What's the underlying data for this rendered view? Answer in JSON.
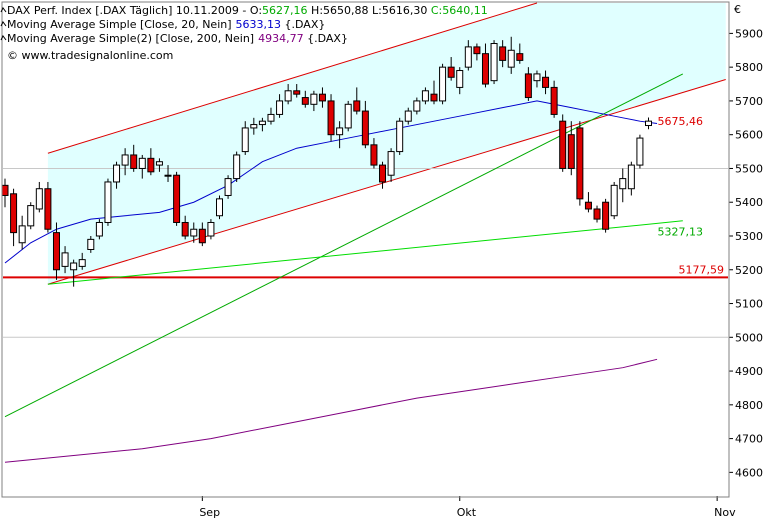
{
  "chart_data": {
    "type": "candlestick",
    "header": {
      "title": "DAX Perf. Index [.DAX Täglich] 10.11.2009",
      "ohlc_text": [
        {
          "text": " - O:",
          "color": "#000000"
        },
        {
          "text": "5627,16",
          "color": "#00aa00"
        },
        {
          "text": " H:5650,88 L:5616,30 ",
          "color": "#000000"
        },
        {
          "text": "C:5640,11",
          "color": "#00aa00"
        }
      ],
      "indicators": [
        {
          "label": "Moving Average Simple [Close, 20, Nein]",
          "value": "5633,13",
          "suffix": " {.DAX}",
          "color": "#0000cc"
        },
        {
          "label": "Moving Average Simple(2) [Close, 200, Nein]",
          "value": "4934,77",
          "suffix": " {.DAX}",
          "color": "#800080"
        }
      ],
      "source": "© www.tradesignalonline.com"
    },
    "currency_symbol": "€",
    "y_axis": {
      "min": 4530,
      "max": 5990,
      "ticks": [
        4600,
        4700,
        4800,
        4900,
        5000,
        5100,
        5200,
        5300,
        5400,
        5500,
        5600,
        5700,
        5800,
        5900
      ]
    },
    "x_axis": {
      "labels": [
        {
          "text": "Sep",
          "index": 23
        },
        {
          "text": "Okt",
          "index": 53
        },
        {
          "text": "Nov",
          "index": 83
        }
      ]
    },
    "candles": [
      [
        5450,
        5470,
        5385,
        5420
      ],
      [
        5425,
        5440,
        5270,
        5310
      ],
      [
        5280,
        5360,
        5260,
        5330
      ],
      [
        5330,
        5400,
        5320,
        5390
      ],
      [
        5380,
        5460,
        5370,
        5440
      ],
      [
        5440,
        5460,
        5310,
        5320
      ],
      [
        5310,
        5340,
        5170,
        5200
      ],
      [
        5210,
        5270,
        5190,
        5250
      ],
      [
        5200,
        5230,
        5150,
        5220
      ],
      [
        5210,
        5250,
        5200,
        5230
      ],
      [
        5260,
        5300,
        5250,
        5290
      ],
      [
        5300,
        5350,
        5290,
        5340
      ],
      [
        5340,
        5470,
        5330,
        5460
      ],
      [
        5460,
        5520,
        5440,
        5510
      ],
      [
        5510,
        5560,
        5480,
        5540
      ],
      [
        5540,
        5570,
        5490,
        5500
      ],
      [
        5500,
        5540,
        5470,
        5530
      ],
      [
        5530,
        5560,
        5480,
        5490
      ],
      [
        5510,
        5530,
        5490,
        5520
      ],
      [
        5480,
        5510,
        5460,
        5480
      ],
      [
        5480,
        5490,
        5330,
        5340
      ],
      [
        5340,
        5360,
        5290,
        5300
      ],
      [
        5300,
        5340,
        5280,
        5320
      ],
      [
        5320,
        5340,
        5270,
        5280
      ],
      [
        5300,
        5350,
        5290,
        5340
      ],
      [
        5360,
        5420,
        5350,
        5410
      ],
      [
        5420,
        5480,
        5410,
        5470
      ],
      [
        5470,
        5550,
        5460,
        5540
      ],
      [
        5550,
        5640,
        5540,
        5620
      ],
      [
        5620,
        5650,
        5600,
        5630
      ],
      [
        5630,
        5650,
        5610,
        5640
      ],
      [
        5640,
        5680,
        5630,
        5660
      ],
      [
        5660,
        5720,
        5650,
        5700
      ],
      [
        5700,
        5750,
        5690,
        5730
      ],
      [
        5730,
        5750,
        5710,
        5720
      ],
      [
        5710,
        5730,
        5680,
        5690
      ],
      [
        5690,
        5730,
        5670,
        5720
      ],
      [
        5720,
        5740,
        5680,
        5700
      ],
      [
        5700,
        5720,
        5580,
        5600
      ],
      [
        5600,
        5640,
        5560,
        5620
      ],
      [
        5620,
        5700,
        5610,
        5690
      ],
      [
        5700,
        5740,
        5660,
        5670
      ],
      [
        5670,
        5700,
        5560,
        5570
      ],
      [
        5570,
        5590,
        5500,
        5510
      ],
      [
        5510,
        5520,
        5440,
        5460
      ],
      [
        5480,
        5560,
        5460,
        5550
      ],
      [
        5550,
        5650,
        5540,
        5640
      ],
      [
        5640,
        5680,
        5630,
        5670
      ],
      [
        5670,
        5710,
        5660,
        5700
      ],
      [
        5700,
        5740,
        5690,
        5730
      ],
      [
        5720,
        5760,
        5690,
        5700
      ],
      [
        5700,
        5810,
        5690,
        5800
      ],
      [
        5800,
        5830,
        5760,
        5770
      ],
      [
        5740,
        5800,
        5720,
        5790
      ],
      [
        5800,
        5880,
        5790,
        5860
      ],
      [
        5860,
        5870,
        5820,
        5840
      ],
      [
        5840,
        5870,
        5740,
        5750
      ],
      [
        5760,
        5880,
        5750,
        5870
      ],
      [
        5860,
        5880,
        5800,
        5820
      ],
      [
        5800,
        5890,
        5780,
        5850
      ],
      [
        5840,
        5870,
        5810,
        5820
      ],
      [
        5780,
        5800,
        5700,
        5710
      ],
      [
        5760,
        5790,
        5740,
        5780
      ],
      [
        5770,
        5790,
        5720,
        5740
      ],
      [
        5740,
        5760,
        5650,
        5660
      ],
      [
        5640,
        5660,
        5490,
        5500
      ],
      [
        5600,
        5640,
        5480,
        5500
      ],
      [
        5620,
        5640,
        5390,
        5410
      ],
      [
        5400,
        5430,
        5370,
        5380
      ],
      [
        5380,
        5390,
        5340,
        5350
      ],
      [
        5400,
        5410,
        5310,
        5320
      ],
      [
        5360,
        5460,
        5350,
        5450
      ],
      [
        5440,
        5500,
        5400,
        5470
      ],
      [
        5440,
        5520,
        5420,
        5510
      ],
      [
        5510,
        5600,
        5500,
        5590
      ],
      [
        5627.16,
        5650.88,
        5616.3,
        5640.11
      ]
    ],
    "series": [
      {
        "name": "Moving Average Simple [Close, 20, Nein]",
        "color": "#0000cc",
        "x": [
          0,
          3,
          6,
          10,
          14,
          18,
          22,
          26,
          30,
          34,
          38,
          42,
          46,
          50,
          54,
          58,
          62,
          64,
          66,
          68,
          70,
          72,
          74,
          76
        ],
        "values": [
          5220,
          5280,
          5320,
          5350,
          5360,
          5370,
          5400,
          5450,
          5520,
          5560,
          5580,
          5600,
          5620,
          5640,
          5660,
          5680,
          5700,
          5690,
          5680,
          5670,
          5660,
          5650,
          5640,
          5633.13
        ]
      },
      {
        "name": "Moving Average Simple(2) [Close, 200, Nein]",
        "color": "#800080",
        "x": [
          0,
          8,
          16,
          24,
          32,
          40,
          48,
          56,
          64,
          72,
          76
        ],
        "values": [
          4630,
          4650,
          4670,
          4700,
          4740,
          4780,
          4820,
          4850,
          4880,
          4910,
          4934.77
        ]
      }
    ],
    "horizontal_lines": [
      {
        "value": 5177.59,
        "label": "5177,59",
        "color": "#dd0000"
      }
    ],
    "trend_lines": [
      {
        "x1": 0,
        "y1": 4765,
        "x2": 79,
        "y2": 5780,
        "color": "#00aa00",
        "width": 1
      },
      {
        "x1": 5,
        "y1": 5157,
        "x2": 79,
        "y2": 5345,
        "color": "#00dd00",
        "width": 1,
        "label": "5327,13"
      }
    ],
    "channel": {
      "fill": "#e0ffff",
      "upper": {
        "x1": 5,
        "y1": 5545,
        "x2": 62,
        "y2": 5990
      },
      "lower": {
        "x1": 5,
        "y1": 5157,
        "x2": 79,
        "y2": 5725
      },
      "color": "#dd0000",
      "label": "5675,46"
    }
  }
}
